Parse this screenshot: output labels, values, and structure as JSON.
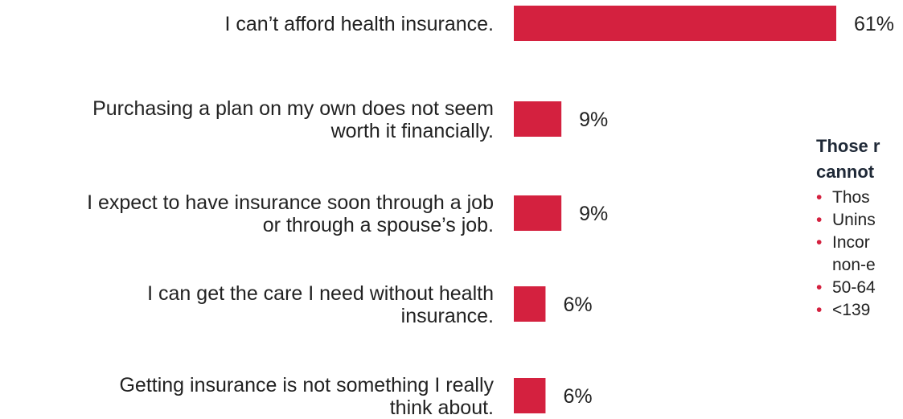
{
  "colors": {
    "bar": "#d4213f",
    "bullet": "#d4213f",
    "text": "#222222"
  },
  "chart_data": {
    "type": "bar",
    "orientation": "horizontal",
    "title": "",
    "xlabel": "",
    "ylabel": "",
    "categories": [
      [
        "I can’t afford health insurance."
      ],
      [
        "Purchasing a plan on my own does not seem",
        "worth it financially."
      ],
      [
        "I expect to have insurance soon through a job",
        "or through a spouse’s job."
      ],
      [
        "I can get the care I need without health",
        "insurance."
      ],
      [
        "Getting insurance is not something I really",
        "think about."
      ]
    ],
    "values": [
      61,
      9,
      9,
      6,
      6
    ],
    "value_labels": [
      "61%",
      "9%",
      "9%",
      "6%",
      "6%"
    ],
    "xlim": [
      0,
      61
    ],
    "grid": false,
    "legend": "none"
  },
  "side_panel": {
    "heading_lines": [
      "Those r",
      "cannot"
    ],
    "bullets": [
      [
        "Thos"
      ],
      [
        "Unins"
      ],
      [
        "Incor",
        "non-e"
      ],
      [
        "50-64"
      ],
      [
        "<139"
      ]
    ]
  }
}
